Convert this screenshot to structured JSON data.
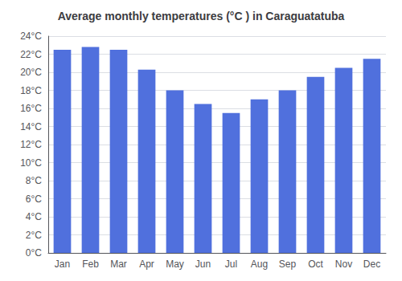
{
  "chart_data": {
    "type": "bar",
    "title": "Average monthly temperatures (°C ) in Caraguatatuba",
    "categories": [
      "Jan",
      "Feb",
      "Mar",
      "Apr",
      "May",
      "Jun",
      "Jul",
      "Aug",
      "Sep",
      "Oct",
      "Nov",
      "Dec"
    ],
    "values": [
      22.5,
      22.8,
      22.5,
      20.3,
      18.0,
      16.5,
      15.5,
      17.0,
      18.0,
      19.5,
      20.5,
      21.5
    ],
    "ylim": [
      0,
      24
    ],
    "yticks": [
      {
        "value": 0,
        "label": "0°C"
      },
      {
        "value": 2,
        "label": "2°C"
      },
      {
        "value": 4,
        "label": "4°C"
      },
      {
        "value": 6,
        "label": "6°C"
      },
      {
        "value": 8,
        "label": "8°C"
      },
      {
        "value": 10,
        "label": "10°C"
      },
      {
        "value": 12,
        "label": "12°C"
      },
      {
        "value": 14,
        "label": "14°C"
      },
      {
        "value": 16,
        "label": "16°C"
      },
      {
        "value": 18,
        "label": "18°C"
      },
      {
        "value": 20,
        "label": "20°C"
      },
      {
        "value": 22,
        "label": "22°C"
      },
      {
        "value": 24,
        "label": "24°C"
      }
    ],
    "grid": true
  }
}
